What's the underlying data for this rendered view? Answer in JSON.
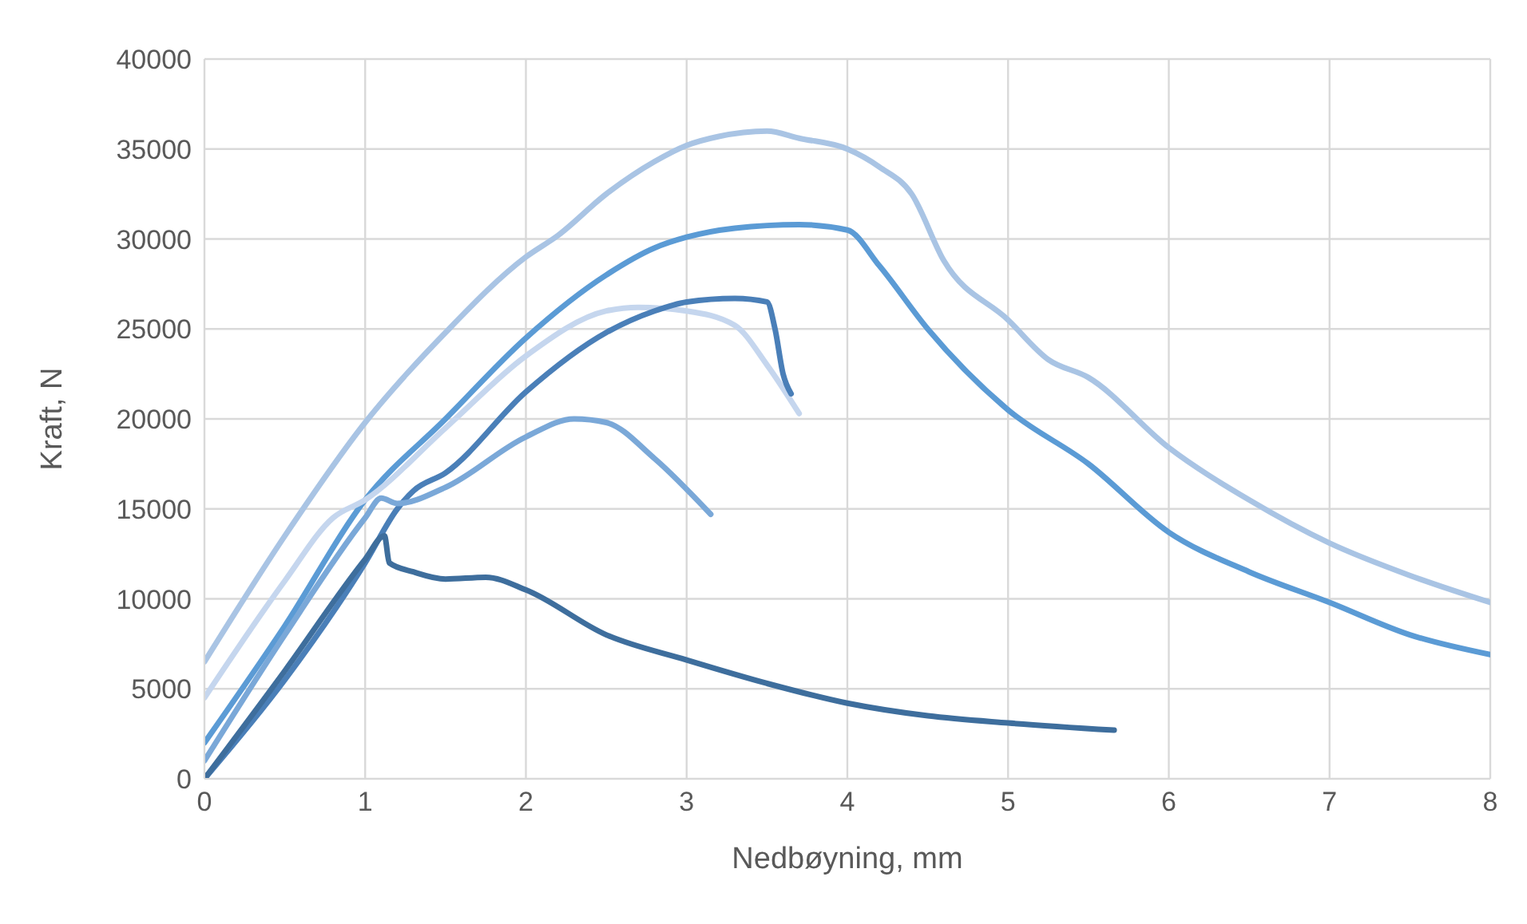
{
  "chart_data": {
    "type": "line",
    "xlabel": "Nedbøyning, mm",
    "ylabel": "Kraft, N",
    "xlim": [
      0,
      8
    ],
    "xticks": [
      0,
      1,
      2,
      3,
      4,
      5,
      6,
      7,
      8
    ],
    "ylim": [
      0,
      40000
    ],
    "yticks": [
      0,
      5000,
      10000,
      15000,
      20000,
      25000,
      30000,
      35000,
      40000
    ],
    "grid": true,
    "series": [
      {
        "color": "#a9c4e4",
        "x": [
          0,
          0.5,
          1,
          1.5,
          2,
          2.2,
          2.5,
          2.8,
          3,
          3.2,
          3.5,
          3.7,
          4,
          4.2,
          4.4,
          4.6,
          5,
          5.25,
          5.5,
          6,
          6.5,
          7,
          7.5,
          8
        ],
        "values": [
          6500,
          13500,
          19800,
          24800,
          29000,
          30200,
          32500,
          34300,
          35200,
          35700,
          36000,
          35600,
          35000,
          34000,
          32500,
          28800,
          25500,
          23300,
          22300,
          18400,
          15500,
          13100,
          11300,
          9800
        ]
      },
      {
        "color": "#5b9bd5",
        "x": [
          0,
          0.5,
          1,
          1.5,
          2,
          2.5,
          2.8,
          3,
          3.3,
          3.7,
          4,
          4.2,
          4.5,
          5,
          5.5,
          6,
          6.5,
          7,
          7.5,
          8
        ],
        "values": [
          2000,
          8500,
          15500,
          20000,
          24500,
          28000,
          29500,
          30100,
          30600,
          30800,
          30500,
          28500,
          25000,
          20500,
          17500,
          13700,
          11500,
          9800,
          8000,
          6900
        ]
      },
      {
        "color": "#c5d6ee",
        "x": [
          0,
          0.5,
          0.8,
          1,
          1.5,
          2,
          2.5,
          2.7,
          3,
          3.3,
          3.5,
          3.7
        ],
        "values": [
          4500,
          11000,
          14500,
          15500,
          19500,
          23500,
          26000,
          26200,
          26000,
          25200,
          23000,
          20300
        ]
      },
      {
        "color": "#4a7fb8",
        "x": [
          0,
          0.5,
          1,
          1.2,
          1.3,
          1.5,
          2,
          2.5,
          2.8,
          3,
          3.3,
          3.5,
          3.55,
          3.6,
          3.65
        ],
        "values": [
          0,
          5500,
          12000,
          15000,
          16000,
          17000,
          21500,
          24800,
          26000,
          26500,
          26700,
          26500,
          25000,
          22500,
          21400
        ]
      },
      {
        "color": "#7aa8d8",
        "x": [
          0,
          0.5,
          1,
          1.1,
          1.2,
          1.5,
          2,
          2.3,
          2.5,
          2.8,
          3.15
        ],
        "values": [
          1000,
          8000,
          14500,
          15600,
          15300,
          16200,
          19000,
          20000,
          19800,
          17800,
          14700
        ]
      },
      {
        "color": "#3e6e9d",
        "x": [
          0,
          0.5,
          1,
          1.12,
          1.15,
          1.3,
          1.5,
          1.75,
          2,
          2.5,
          3,
          3.5,
          4,
          4.5,
          5,
          5.66
        ],
        "values": [
          0,
          6000,
          12200,
          13500,
          12000,
          11500,
          11100,
          11200,
          10500,
          8000,
          6600,
          5300,
          4200,
          3500,
          3100,
          2700
        ]
      }
    ]
  }
}
